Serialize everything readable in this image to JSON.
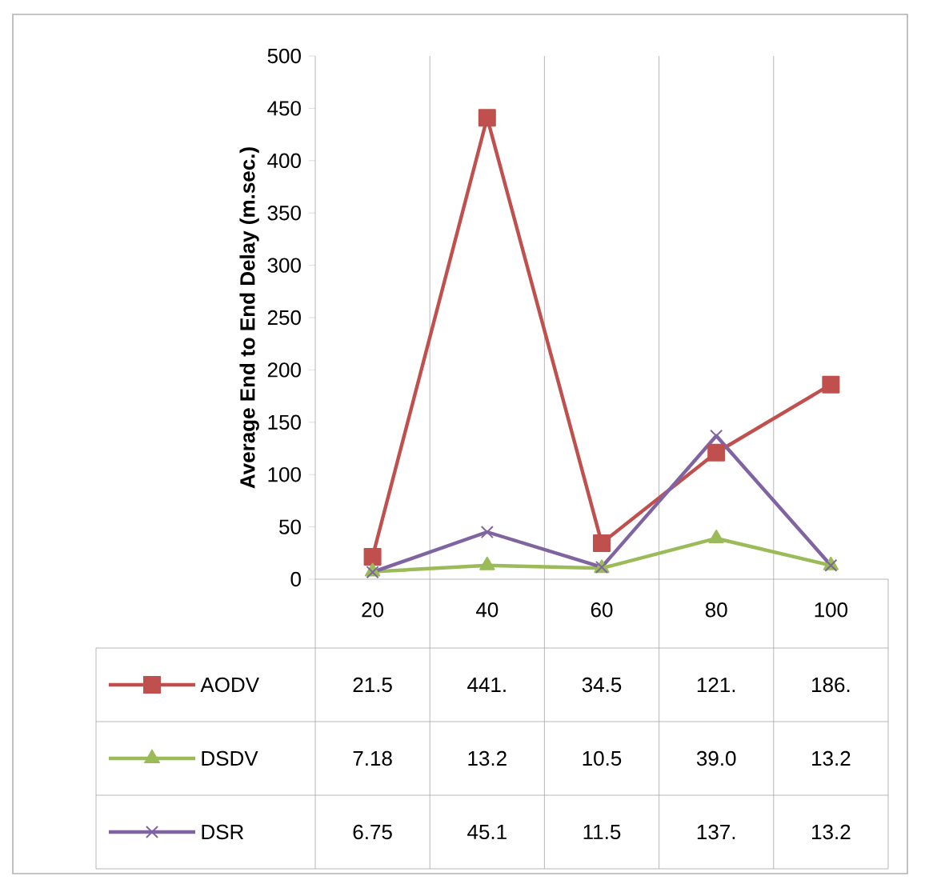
{
  "chart_data": {
    "type": "line",
    "ylabel": "Average End to End Delay (m.sec.)",
    "categories": [
      "20",
      "40",
      "60",
      "80",
      "100"
    ],
    "ylim": [
      0,
      500
    ],
    "yticks": [
      0,
      50,
      100,
      150,
      200,
      250,
      300,
      350,
      400,
      450,
      500
    ],
    "grid": "x",
    "legend": "bottom left",
    "series": [
      {
        "name": "AODV",
        "color": "#c0504d",
        "marker": "square",
        "values": [
          21.5,
          441,
          34.5,
          121,
          186
        ],
        "value_labels": [
          "21.5",
          "441.",
          "34.5",
          "121.",
          "186."
        ]
      },
      {
        "name": "DSDV",
        "color": "#9bbb59",
        "marker": "triangle",
        "values": [
          7.18,
          13.2,
          10.5,
          39.0,
          13.2
        ],
        "value_labels": [
          "7.18",
          "13.2",
          "10.5",
          "39.0",
          "13.2"
        ]
      },
      {
        "name": "DSR",
        "color": "#8064a2",
        "marker": "cross",
        "values": [
          6.75,
          45.1,
          11.5,
          137,
          13.2
        ],
        "value_labels": [
          "6.75",
          "45.1",
          "11.5",
          "137.",
          "13.2"
        ]
      }
    ]
  }
}
